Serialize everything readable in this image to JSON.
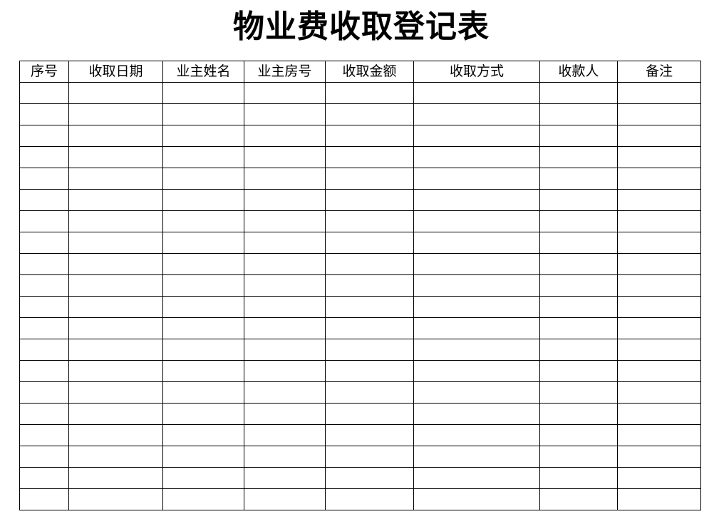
{
  "title": "物业费收取登记表",
  "table": {
    "headers": [
      "序号",
      "收取日期",
      "业主姓名",
      "业主房号",
      "收取金额",
      "收取方式",
      "收款人",
      "备注"
    ],
    "rows": [
      [
        "",
        "",
        "",
        "",
        "",
        "",
        "",
        ""
      ],
      [
        "",
        "",
        "",
        "",
        "",
        "",
        "",
        ""
      ],
      [
        "",
        "",
        "",
        "",
        "",
        "",
        "",
        ""
      ],
      [
        "",
        "",
        "",
        "",
        "",
        "",
        "",
        ""
      ],
      [
        "",
        "",
        "",
        "",
        "",
        "",
        "",
        ""
      ],
      [
        "",
        "",
        "",
        "",
        "",
        "",
        "",
        ""
      ],
      [
        "",
        "",
        "",
        "",
        "",
        "",
        "",
        ""
      ],
      [
        "",
        "",
        "",
        "",
        "",
        "",
        "",
        ""
      ],
      [
        "",
        "",
        "",
        "",
        "",
        "",
        "",
        ""
      ],
      [
        "",
        "",
        "",
        "",
        "",
        "",
        "",
        ""
      ],
      [
        "",
        "",
        "",
        "",
        "",
        "",
        "",
        ""
      ],
      [
        "",
        "",
        "",
        "",
        "",
        "",
        "",
        ""
      ],
      [
        "",
        "",
        "",
        "",
        "",
        "",
        "",
        ""
      ],
      [
        "",
        "",
        "",
        "",
        "",
        "",
        "",
        ""
      ],
      [
        "",
        "",
        "",
        "",
        "",
        "",
        "",
        ""
      ],
      [
        "",
        "",
        "",
        "",
        "",
        "",
        "",
        ""
      ],
      [
        "",
        "",
        "",
        "",
        "",
        "",
        "",
        ""
      ],
      [
        "",
        "",
        "",
        "",
        "",
        "",
        "",
        ""
      ],
      [
        "",
        "",
        "",
        "",
        "",
        "",
        "",
        ""
      ],
      [
        "",
        "",
        "",
        "",
        "",
        "",
        "",
        ""
      ]
    ]
  }
}
